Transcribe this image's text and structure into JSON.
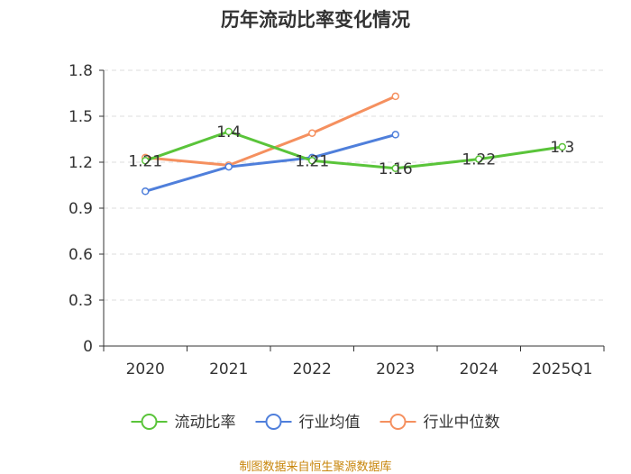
{
  "title": "历年流动比率变化情况",
  "source": "制图数据来自恒生聚源数据库",
  "chart_data": {
    "type": "line",
    "categories": [
      "2020",
      "2021",
      "2022",
      "2023",
      "2024",
      "2025Q1"
    ],
    "ylim": [
      0,
      1.8
    ],
    "yticks": [
      "0",
      "0.3",
      "0.6",
      "0.9",
      "1.2",
      "1.5",
      "1.8"
    ],
    "grid": true,
    "legend_position": "bottom",
    "series": [
      {
        "name": "流动比率",
        "color": "#5ac43a",
        "values": [
          1.21,
          1.4,
          1.21,
          1.16,
          1.22,
          1.3
        ],
        "labels": [
          "1.21",
          "1.4",
          "1.21",
          "1.16",
          "1.22",
          "1.3"
        ]
      },
      {
        "name": "行业均值",
        "color": "#4f7fdb",
        "values": [
          1.01,
          1.17,
          1.23,
          1.38,
          null,
          null
        ]
      },
      {
        "name": "行业中位数",
        "color": "#f5905f",
        "values": [
          1.23,
          1.18,
          1.39,
          1.63,
          null,
          null
        ]
      }
    ]
  }
}
